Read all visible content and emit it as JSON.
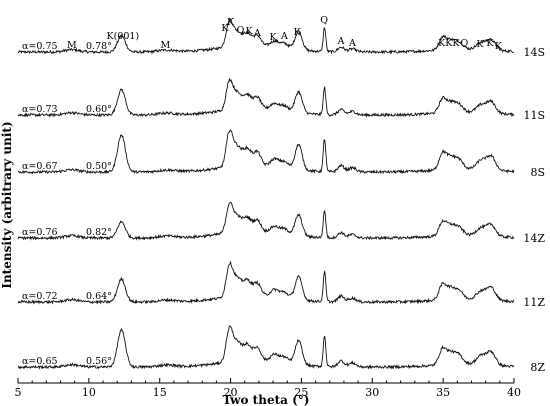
{
  "chart_data": {
    "type": "line",
    "xlabel": "Two theta (°)",
    "ylabel": "Intensity (arbitrary unit)",
    "xlim": [
      5,
      40
    ],
    "x_ticks": [
      "5",
      "10",
      "15",
      "20",
      "25",
      "30",
      "35",
      "40"
    ],
    "series": [
      {
        "name": "14S",
        "alpha": "α=0.75",
        "angle": "0.78°",
        "k001_height": 0.35,
        "peak_scale": 0.85
      },
      {
        "name": "11S",
        "alpha": "α=0.73",
        "angle": "0.60°",
        "k001_height": 0.55,
        "peak_scale": 0.95
      },
      {
        "name": "8S",
        "alpha": "α=0.67",
        "angle": "0.50°",
        "k001_height": 0.8,
        "peak_scale": 1.15
      },
      {
        "name": "14Z",
        "alpha": "α=0.76",
        "angle": "0.82°",
        "k001_height": 0.35,
        "peak_scale": 0.95
      },
      {
        "name": "11Z",
        "alpha": "α=0.72",
        "angle": "0.64°",
        "k001_height": 0.5,
        "peak_scale": 1.05
      },
      {
        "name": "8Z",
        "alpha": "α=0.65",
        "angle": "0.56°",
        "k001_height": 0.8,
        "peak_scale": 1.1
      }
    ],
    "peak_annotations": [
      {
        "label": "M",
        "x": 8.8
      },
      {
        "label": "K(001)",
        "x": 12.4
      },
      {
        "label": "M",
        "x": 15.4
      },
      {
        "label": "K",
        "x": 19.6
      },
      {
        "label": "K",
        "x": 20.0
      },
      {
        "label": "Q",
        "x": 20.7
      },
      {
        "label": "K",
        "x": 21.3
      },
      {
        "label": "A",
        "x": 21.9
      },
      {
        "label": "K",
        "x": 23.0
      },
      {
        "label": "A",
        "x": 23.8
      },
      {
        "label": "K",
        "x": 24.7
      },
      {
        "label": "Q",
        "x": 26.6
      },
      {
        "label": "A",
        "x": 27.8
      },
      {
        "label": "A",
        "x": 28.6
      },
      {
        "label": "K",
        "x": 34.9
      },
      {
        "label": "K",
        "x": 35.4
      },
      {
        "label": "K",
        "x": 35.9
      },
      {
        "label": "Q",
        "x": 36.5
      },
      {
        "label": "K",
        "x": 37.6
      },
      {
        "label": "K",
        "x": 38.3
      },
      {
        "label": "K",
        "x": 38.9
      }
    ]
  }
}
